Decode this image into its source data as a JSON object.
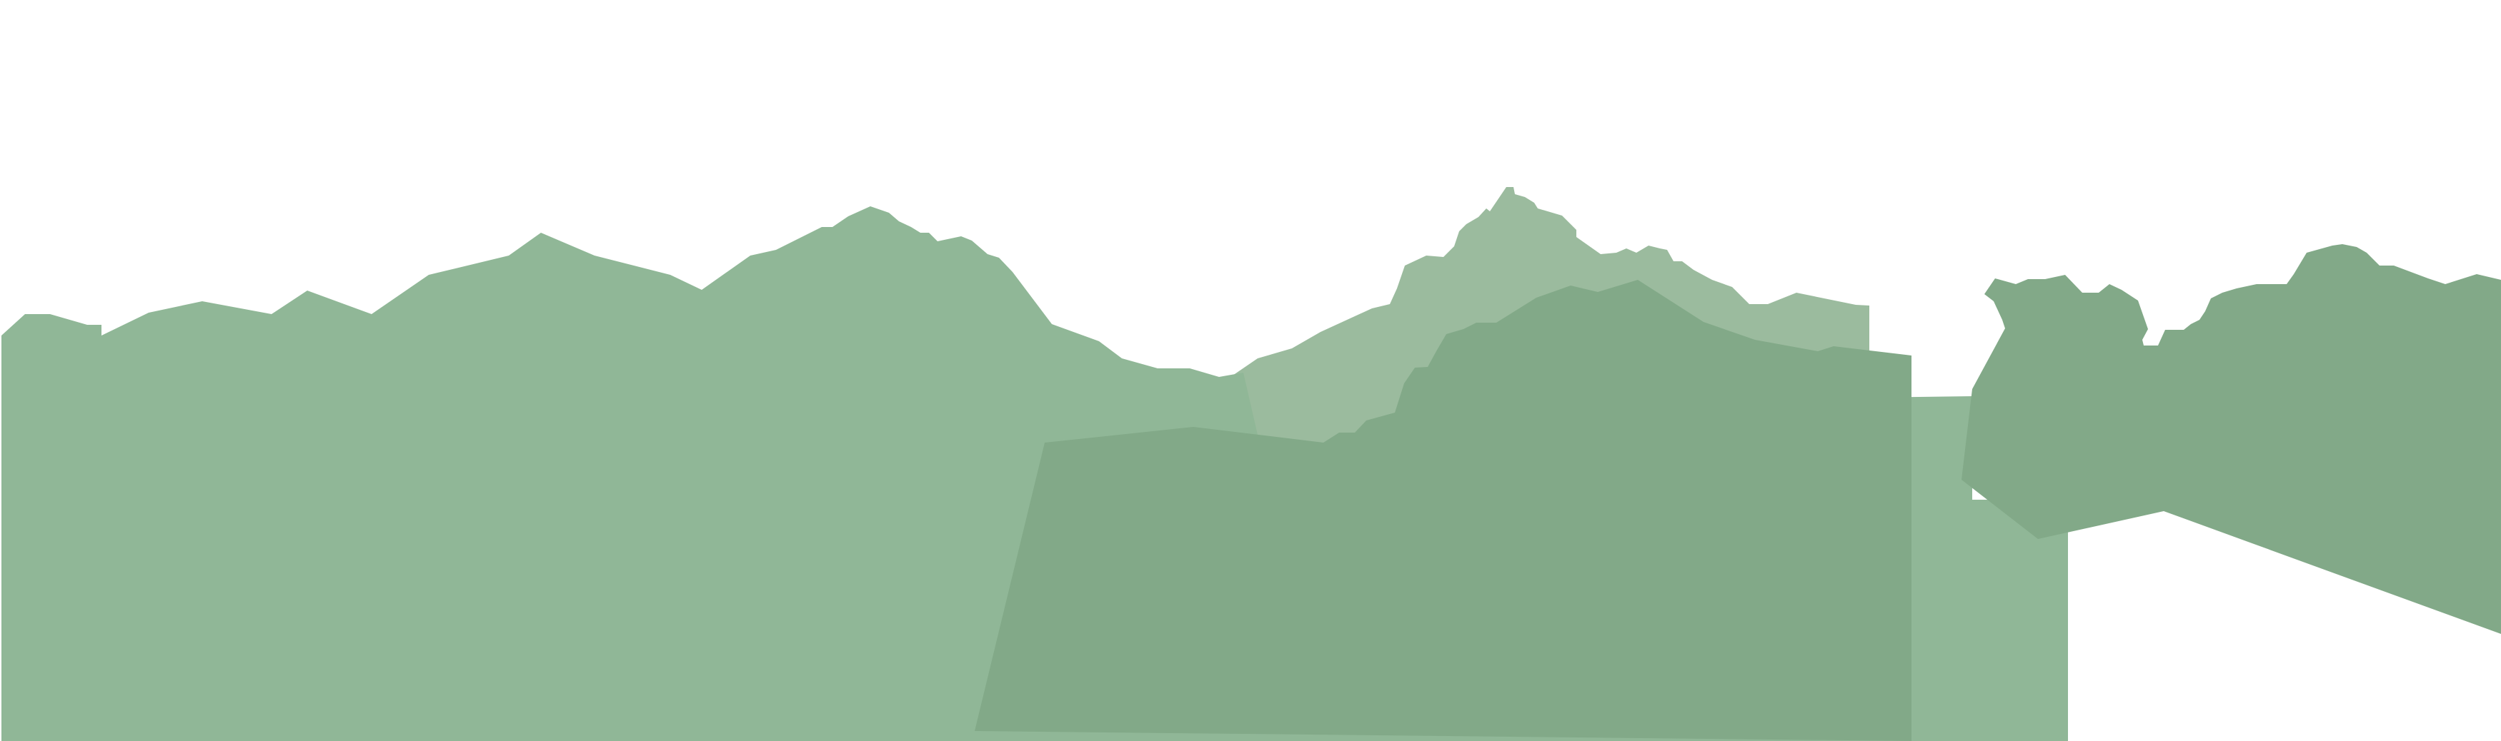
{
  "colors": {
    "background": "#ffffff",
    "back_ridge": "#9bbb9e",
    "main_ridge": "#90b797",
    "front_ridge": "#82a988"
  }
}
